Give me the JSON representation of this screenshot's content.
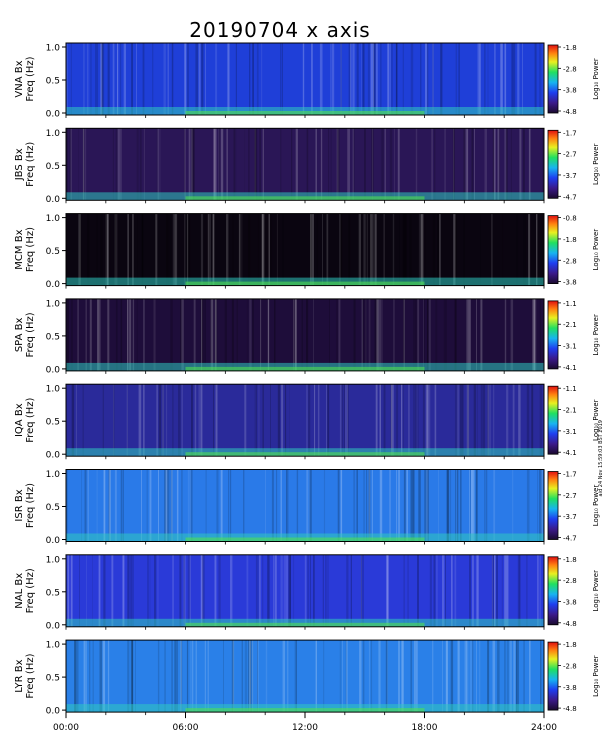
{
  "title": "20190704 x axis",
  "stamp": "aid 24 Nov 15:59:03 BST 2019",
  "chart_data": {
    "type": "heatmap",
    "title": "20190704 x axis",
    "colorbar_label": "Log₁₀ Power",
    "ylabel_line2": "Freq (Hz)",
    "ylim": [
      0,
      1.0
    ],
    "ytick_labels": [
      "0.0",
      "0.5",
      "1.0"
    ],
    "xlim": [
      "00:00",
      "24:00"
    ],
    "xtick_labels": [
      "00:00",
      "06:00",
      "12:00",
      "18:00",
      "24:00"
    ],
    "panels": [
      {
        "station": "VNA Bx",
        "colorbar_ticks": [
          "-1.8",
          "-2.8",
          "-3.8",
          "-4.8"
        ],
        "base": "#1f3fd8"
      },
      {
        "station": "JBS Bx",
        "colorbar_ticks": [
          "-1.7",
          "-2.7",
          "-3.7",
          "-4.7"
        ],
        "base": "#2a1656"
      },
      {
        "station": "MCM Bx",
        "colorbar_ticks": [
          "-0.8",
          "-1.8",
          "-2.8",
          "-3.8"
        ],
        "base": "#0a0510"
      },
      {
        "station": "SPA Bx",
        "colorbar_ticks": [
          "-1.1",
          "-2.1",
          "-3.1",
          "-4.1"
        ],
        "base": "#1e0d3a"
      },
      {
        "station": "IQA Bx",
        "colorbar_ticks": [
          "-1.1",
          "-2.1",
          "-3.1",
          "-4.1"
        ],
        "base": "#2a2a9a"
      },
      {
        "station": "ISR Bx",
        "colorbar_ticks": [
          "-1.7",
          "-2.7",
          "-3.7",
          "-4.7"
        ],
        "base": "#2a7ae8"
      },
      {
        "station": "NAL Bx",
        "colorbar_ticks": [
          "-1.8",
          "-2.8",
          "-3.8",
          "-4.8"
        ],
        "base": "#2a3ad8"
      },
      {
        "station": "LYR Bx",
        "colorbar_ticks": [
          "-1.8",
          "-2.8",
          "-3.8",
          "-4.8"
        ],
        "base": "#2a80e8"
      }
    ]
  }
}
